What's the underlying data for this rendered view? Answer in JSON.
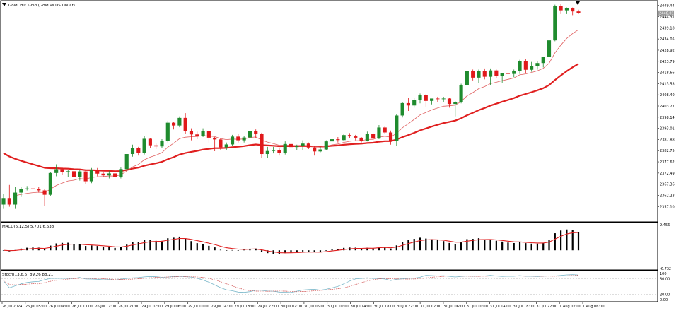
{
  "window": {
    "title": "Gold, H1:  Gold (Gold vs US Dollar)"
  },
  "indicators": {
    "macd_label": "MACD(6,12,5) 5.701 6.638",
    "stoch_label": "Stoch(13,6,6) 89.26 88.21"
  },
  "colors": {
    "bull": "#1f8b2e",
    "bear": "#e0191b",
    "ma_fast": "#e06060",
    "ma_slow": "#e02020",
    "macd_signal": "#e02020",
    "macd_hist": "#000000",
    "stoch_main": "#7ab7c9",
    "stoch_signal": "#d05050",
    "grid_border": "#000000",
    "price_tag_bg": "#9a9a9a"
  },
  "chart_data": [
    {
      "type": "candlestick",
      "panel": "price",
      "symbol": "Gold",
      "timeframe": "H1",
      "ylim": [
        2352.0,
        2450.0
      ],
      "y_ticks": [
        "2449.44",
        "2444.31",
        "2439.18",
        "2434.05",
        "2428.92",
        "2423.79",
        "2418.66",
        "2413.53",
        "2408.40",
        "2403.27",
        "2398.14",
        "2393.01",
        "2387.88",
        "2382.75",
        "2377.62",
        "2372.49",
        "2367.36",
        "2362.23",
        "2357.10"
      ],
      "current_price": "2446.01",
      "time_axis": [
        "26 Jul 2024",
        "26 Jul 05:00",
        "26 Jul 09:00",
        "26 Jul 13:00",
        "26 Jul 17:00",
        "26 Jul 21:00",
        "29 Jul 02:00",
        "29 Jul 06:00",
        "29 Jul 10:00",
        "29 Jul 14:00",
        "29 Jul 18:00",
        "29 Jul 22:00",
        "30 Jul 02:00",
        "30 Jul 06:00",
        "30 Jul 10:00",
        "30 Jul 14:00",
        "30 Jul 18:00",
        "30 Jul 22:00",
        "31 Jul 02:00",
        "31 Jul 06:00",
        "31 Jul 10:00",
        "31 Jul 14:00",
        "31 Jul 18:00",
        "31 Jul 22:00",
        "1 Aug 02:00",
        "1 Aug 06:00"
      ],
      "ohlc": [
        [
          2358.0,
          2363.0,
          2356.0,
          2361.0
        ],
        [
          2361.0,
          2367.0,
          2357.0,
          2358.0
        ],
        [
          2358.0,
          2366.0,
          2356.0,
          2363.5
        ],
        [
          2363.5,
          2366.0,
          2361.5,
          2365.2
        ],
        [
          2365.2,
          2366.5,
          2364.5,
          2365.4
        ],
        [
          2365.4,
          2366.8,
          2364.0,
          2365.0
        ],
        [
          2365.0,
          2366.0,
          2363.5,
          2364.5
        ],
        [
          2364.5,
          2365.0,
          2357.5,
          2362.5
        ],
        [
          2362.5,
          2373.0,
          2362.0,
          2372.5
        ],
        [
          2372.5,
          2376.5,
          2371.0,
          2374.2
        ],
        [
          2374.2,
          2375.0,
          2371.5,
          2372.8
        ],
        [
          2372.8,
          2374.0,
          2370.5,
          2373.3
        ],
        [
          2373.3,
          2374.0,
          2369.0,
          2370.7
        ],
        [
          2370.7,
          2374.0,
          2369.0,
          2373.2
        ],
        [
          2373.2,
          2374.0,
          2367.5,
          2368.7
        ],
        [
          2368.7,
          2374.8,
          2367.8,
          2373.8
        ],
        [
          2373.8,
          2374.8,
          2371.0,
          2372.2
        ],
        [
          2372.2,
          2373.0,
          2370.5,
          2371.4
        ],
        [
          2371.4,
          2373.5,
          2370.0,
          2372.3
        ],
        [
          2372.3,
          2373.0,
          2369.8,
          2370.8
        ],
        [
          2370.8,
          2375.0,
          2370.0,
          2374.3
        ],
        [
          2374.3,
          2381.0,
          2373.5,
          2381.2
        ],
        [
          2381.2,
          2385.5,
          2380.0,
          2383.8
        ],
        [
          2383.8,
          2384.5,
          2380.5,
          2381.7
        ],
        [
          2381.7,
          2389.5,
          2381.0,
          2388.2
        ],
        [
          2388.2,
          2388.5,
          2384.0,
          2385.2
        ],
        [
          2385.2,
          2386.0,
          2383.5,
          2384.7
        ],
        [
          2384.7,
          2388.0,
          2384.0,
          2387.2
        ],
        [
          2387.2,
          2396.5,
          2386.5,
          2395.6
        ],
        [
          2395.6,
          2396.0,
          2392.5,
          2394.3
        ],
        [
          2394.3,
          2398.5,
          2393.5,
          2397.8
        ],
        [
          2397.8,
          2400.0,
          2390.5,
          2391.8
        ],
        [
          2391.8,
          2393.0,
          2387.5,
          2390.2
        ],
        [
          2390.2,
          2391.5,
          2388.0,
          2389.6
        ],
        [
          2389.6,
          2393.0,
          2389.0,
          2391.6
        ],
        [
          2391.6,
          2392.0,
          2386.5,
          2388.7
        ],
        [
          2388.7,
          2389.0,
          2382.5,
          2387.9
        ],
        [
          2387.9,
          2388.5,
          2383.0,
          2384.3
        ],
        [
          2384.3,
          2386.5,
          2383.0,
          2385.6
        ],
        [
          2385.6,
          2390.0,
          2385.0,
          2389.2
        ],
        [
          2389.2,
          2390.5,
          2386.5,
          2387.5
        ],
        [
          2387.5,
          2389.5,
          2386.5,
          2388.8
        ],
        [
          2388.8,
          2392.5,
          2388.5,
          2391.6
        ],
        [
          2391.6,
          2392.5,
          2388.5,
          2390.3
        ],
        [
          2390.3,
          2391.0,
          2379.5,
          2381.2
        ],
        [
          2381.2,
          2384.5,
          2379.5,
          2382.6
        ],
        [
          2382.6,
          2384.5,
          2381.5,
          2382.9
        ],
        [
          2382.9,
          2384.0,
          2380.5,
          2381.7
        ],
        [
          2381.7,
          2387.0,
          2381.0,
          2385.8
        ],
        [
          2385.8,
          2386.5,
          2383.5,
          2384.4
        ],
        [
          2384.4,
          2385.5,
          2383.0,
          2384.9
        ],
        [
          2384.9,
          2387.5,
          2383.0,
          2386.0
        ],
        [
          2386.0,
          2386.5,
          2383.5,
          2384.2
        ],
        [
          2384.2,
          2384.8,
          2380.5,
          2382.4
        ],
        [
          2382.4,
          2384.5,
          2382.0,
          2383.3
        ],
        [
          2383.3,
          2387.5,
          2383.0,
          2387.0
        ],
        [
          2387.0,
          2388.5,
          2386.5,
          2388.0
        ],
        [
          2388.0,
          2389.0,
          2386.5,
          2387.6
        ],
        [
          2387.6,
          2390.5,
          2387.0,
          2389.9
        ],
        [
          2389.9,
          2390.8,
          2388.5,
          2389.3
        ],
        [
          2389.3,
          2390.0,
          2387.5,
          2388.7
        ],
        [
          2388.7,
          2389.0,
          2386.5,
          2387.3
        ],
        [
          2387.3,
          2391.5,
          2387.0,
          2390.3
        ],
        [
          2390.3,
          2391.0,
          2387.5,
          2388.3
        ],
        [
          2388.3,
          2394.5,
          2388.0,
          2393.4
        ],
        [
          2393.4,
          2394.0,
          2390.5,
          2391.1
        ],
        [
          2391.1,
          2392.0,
          2385.5,
          2387.2
        ],
        [
          2387.2,
          2399.5,
          2385.0,
          2398.9
        ],
        [
          2398.9,
          2405.0,
          2398.0,
          2404.6
        ],
        [
          2404.6,
          2407.0,
          2401.0,
          2403.5
        ],
        [
          2403.5,
          2407.0,
          2402.5,
          2406.0
        ],
        [
          2406.0,
          2409.0,
          2404.5,
          2408.4
        ],
        [
          2408.4,
          2408.8,
          2403.0,
          2405.6
        ],
        [
          2405.6,
          2406.5,
          2404.0,
          2406.7
        ],
        [
          2406.7,
          2407.5,
          2405.0,
          2406.4
        ],
        [
          2406.4,
          2407.5,
          2405.0,
          2406.7
        ],
        [
          2406.7,
          2407.0,
          2402.5,
          2404.2
        ],
        [
          2404.2,
          2405.5,
          2398.5,
          2405.0
        ],
        [
          2405.0,
          2413.5,
          2404.5,
          2413.0
        ],
        [
          2413.0,
          2419.5,
          2412.5,
          2419.4
        ],
        [
          2419.4,
          2420.0,
          2415.0,
          2416.3
        ],
        [
          2416.3,
          2420.0,
          2414.0,
          2419.2
        ],
        [
          2419.2,
          2420.5,
          2415.5,
          2416.7
        ],
        [
          2416.7,
          2420.5,
          2413.0,
          2419.6
        ],
        [
          2419.6,
          2420.0,
          2416.0,
          2416.9
        ],
        [
          2416.9,
          2418.5,
          2414.0,
          2418.4
        ],
        [
          2418.4,
          2419.0,
          2416.5,
          2418.0
        ],
        [
          2418.0,
          2420.0,
          2416.5,
          2419.2
        ],
        [
          2419.2,
          2424.5,
          2418.0,
          2424.0
        ],
        [
          2424.0,
          2425.0,
          2418.5,
          2419.9
        ],
        [
          2419.9,
          2423.5,
          2419.0,
          2421.5
        ],
        [
          2421.5,
          2424.0,
          2420.0,
          2423.0
        ],
        [
          2423.0,
          2426.0,
          2421.0,
          2425.7
        ],
        [
          2425.7,
          2433.5,
          2425.0,
          2433.4
        ],
        [
          2433.4,
          2449.8,
          2433.0,
          2449.3
        ],
        [
          2449.3,
          2450.0,
          2445.5,
          2447.2
        ],
        [
          2447.2,
          2448.5,
          2445.5,
          2448.1
        ],
        [
          2448.1,
          2448.5,
          2445.0,
          2446.7
        ],
        [
          2446.7,
          2447.5,
          2445.5,
          2446.0
        ]
      ],
      "series": [
        {
          "name": "",
          "kind": "ma_fast"
        },
        {
          "name": "",
          "kind": "ma_slow"
        }
      ]
    },
    {
      "type": "bar",
      "panel": "macd",
      "title": "MACD(6,12,5) 5.701 6.638",
      "ylim": [
        -6.732,
        9.456
      ],
      "y_ticks": [
        "9.456",
        "-6.732"
      ]
    },
    {
      "type": "line",
      "panel": "stochastic",
      "title": "Stoch(13,6,6) 89.26 88.21",
      "ylim": [
        0,
        100
      ],
      "y_ticks": [
        "100",
        "80.00",
        "20.00",
        "0.00"
      ]
    }
  ]
}
